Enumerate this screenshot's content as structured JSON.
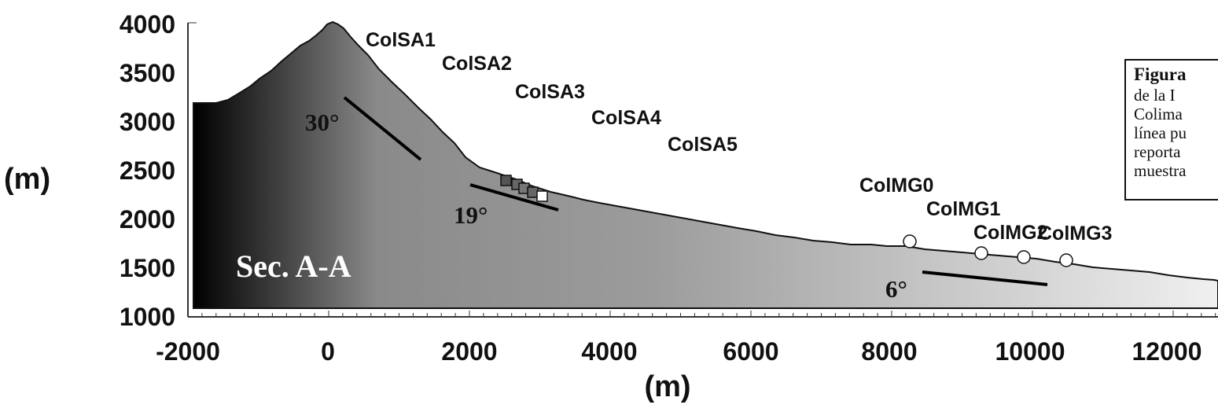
{
  "diagram": {
    "type": "topographic cross-section",
    "section_label": "Sec. A-A",
    "y_axis": {
      "title": "(m)",
      "ticks": [
        "4000",
        "3500",
        "3000",
        "2500",
        "2000",
        "1500",
        "1000"
      ],
      "range": [
        1000,
        4000
      ]
    },
    "x_axis": {
      "title": "(m)",
      "ticks": [
        "-2000",
        "0",
        "2000",
        "4000",
        "6000",
        "8000",
        "10000",
        "12000"
      ],
      "range": [
        -2000,
        12600
      ]
    },
    "slope_angles": [
      "30°",
      "19°",
      "6°"
    ],
    "samples_upper": [
      "ColSA1",
      "ColSA2",
      "ColSA3",
      "ColSA4",
      "ColSA5"
    ],
    "samples_lower": [
      "ColMG0",
      "ColMG1",
      "ColMG2",
      "ColMG3"
    ],
    "profile_color_dark": "#000000",
    "profile_color_mid": "#8c8c8c",
    "profile_color_light": "#efefef"
  },
  "caption": {
    "title": "Figura",
    "lines": [
      "de la I",
      "Colima",
      "línea pu",
      "reporta",
      "muestra"
    ]
  }
}
